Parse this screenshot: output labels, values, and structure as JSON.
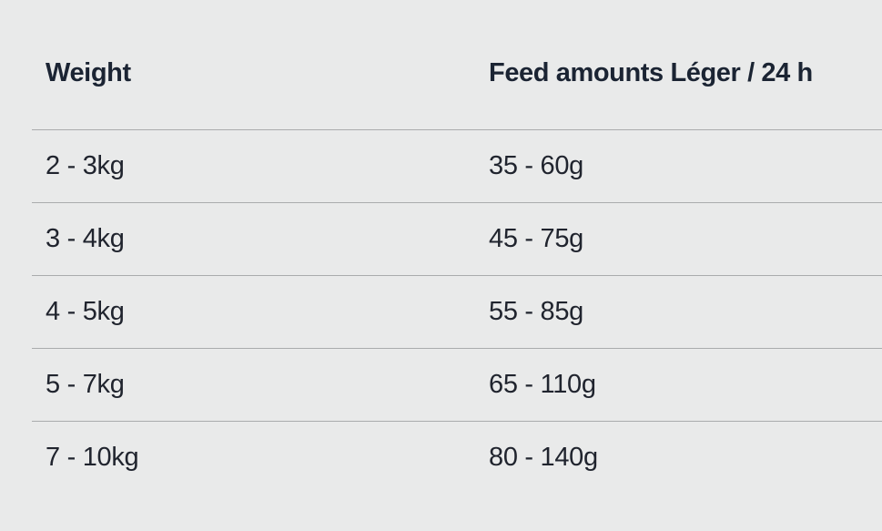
{
  "page": {
    "background_color": "#e9eaea",
    "divider_color": "#aaacad",
    "header_text_color": "#1b2433",
    "body_text_color": "#20242e"
  },
  "table": {
    "columns": [
      {
        "label": "Weight"
      },
      {
        "label": "Feed amounts Léger / 24 h"
      }
    ],
    "rows": [
      {
        "weight": "2 - 3kg",
        "feed": "35 - 60g"
      },
      {
        "weight": "3 - 4kg",
        "feed": "45 - 75g"
      },
      {
        "weight": "4 - 5kg",
        "feed": "55 - 85g"
      },
      {
        "weight": "5 - 7kg",
        "feed": "65 - 110g"
      },
      {
        "weight": "7 - 10kg",
        "feed": "80 - 140g"
      }
    ]
  }
}
